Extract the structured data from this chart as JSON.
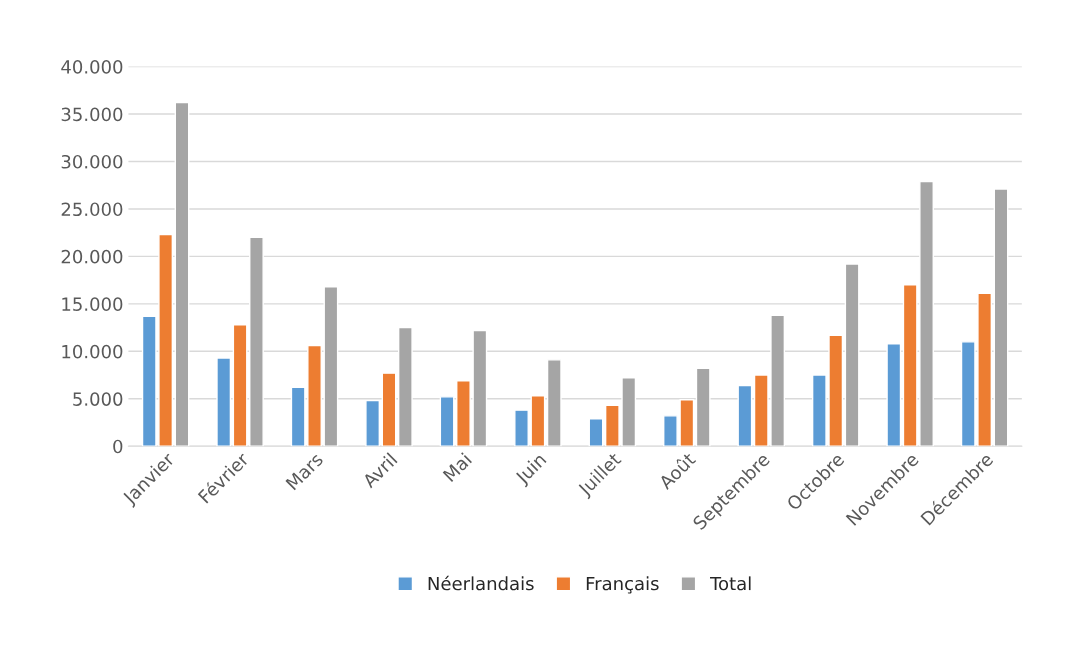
{
  "chart_data": {
    "type": "bar",
    "categories": [
      "Janvier",
      "Février",
      "Mars",
      "Avril",
      "Mai",
      "Juin",
      "Juillet",
      "Août",
      "Septembre",
      "Octobre",
      "Novembre",
      "Décembre"
    ],
    "series": [
      {
        "name": "Néerlandais",
        "color": "#5b9bd5",
        "values": [
          13700,
          9300,
          6200,
          4800,
          5200,
          3800,
          2900,
          3200,
          6400,
          7500,
          10800,
          11000
        ]
      },
      {
        "name": "Français",
        "color": "#ed7d31",
        "values": [
          22300,
          12800,
          10600,
          7700,
          6900,
          5300,
          4300,
          4900,
          7500,
          11700,
          17000,
          16100
        ]
      },
      {
        "name": "Total",
        "color": "#a5a5a5",
        "values": [
          36200,
          22000,
          16800,
          12500,
          12200,
          9100,
          7200,
          8200,
          13800,
          19200,
          27900,
          27100
        ]
      }
    ],
    "ylim": [
      0,
      40000
    ],
    "yticks": [
      0,
      {
        "value": 5000,
        "label": "5.000"
      },
      {
        "value": 10000,
        "label": "10.000"
      },
      {
        "value": 15000,
        "label": "15.000"
      },
      {
        "value": 20000,
        "label": "20.000"
      },
      {
        "value": 25000,
        "label": "25.000"
      },
      {
        "value": 30000,
        "label": "30.000"
      },
      {
        "value": 35000,
        "label": "35.000"
      },
      {
        "value": 40000,
        "label": "40.000"
      }
    ],
    "grid": "y",
    "legend": "bottom"
  }
}
